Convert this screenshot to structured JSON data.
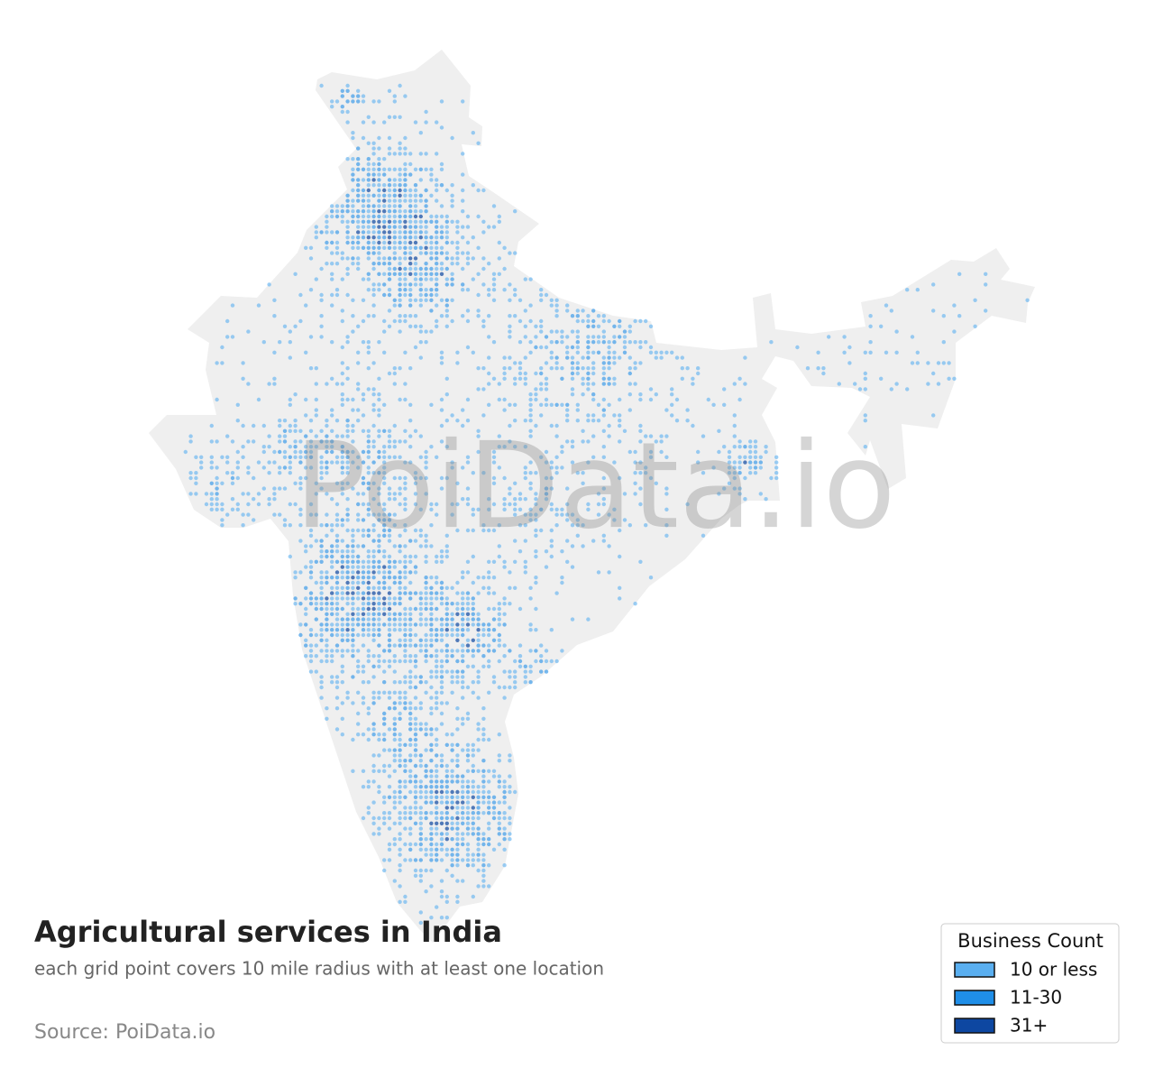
{
  "map": {
    "title": "Agricultural services in India",
    "subtitle": "each grid point covers 10 mile radius with at least one location",
    "source": "Source: PoiData.io",
    "watermark": "PoiData.io",
    "legend": {
      "title": "Business Count",
      "items": [
        {
          "label": "10 or less",
          "color": "#5aaff0"
        },
        {
          "label": "11-30",
          "color": "#1f8ee8"
        },
        {
          "label": "31+",
          "color": "#0d47a1"
        }
      ]
    }
  }
}
